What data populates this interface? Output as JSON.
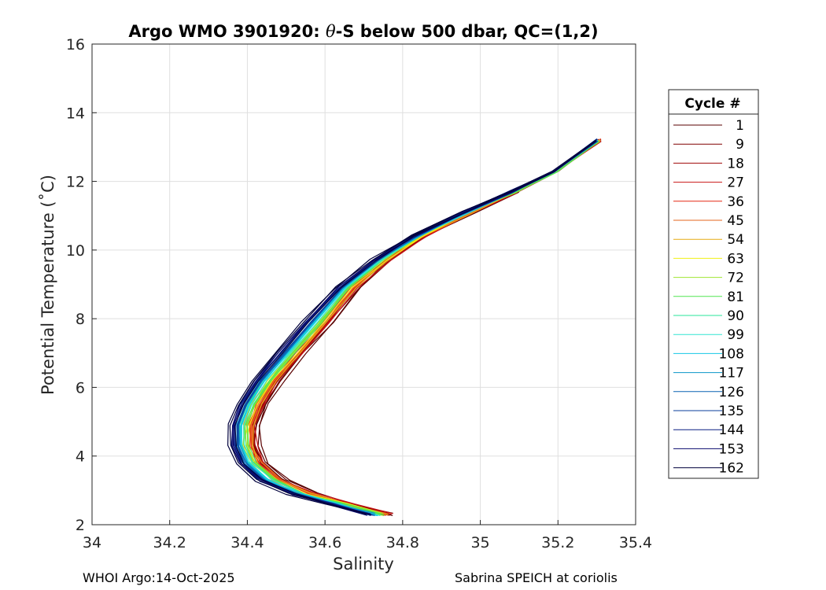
{
  "chart_data": {
    "type": "line",
    "title": "Argo WMO 3901920: θ-S below 500 dbar,  QC=(1,2)",
    "title_prefix": "Argo WMO 3901920: ",
    "title_theta": "θ",
    "title_suffix": "-S below 500 dbar,  QC=(1,2)",
    "xlabel": "Salinity",
    "ylabel": "Potential Temperature (˚C)",
    "xlim": [
      34,
      35.4
    ],
    "ylim": [
      2,
      16
    ],
    "xticks": [
      34,
      34.2,
      34.4,
      34.6,
      34.8,
      35,
      35.2,
      35.4
    ],
    "xtick_labels": [
      "34",
      "34.2",
      "34.4",
      "34.6",
      "34.8",
      "35",
      "35.2",
      "35.4"
    ],
    "yticks": [
      2,
      4,
      6,
      8,
      10,
      12,
      14,
      16
    ],
    "ytick_labels": [
      "2",
      "4",
      "6",
      "8",
      "10",
      "12",
      "14",
      "16"
    ],
    "grid": true,
    "legend": {
      "title": "Cycle #",
      "placement": "right",
      "entries": [
        {
          "label": "1",
          "color": "#5a0000"
        },
        {
          "label": "9",
          "color": "#800000"
        },
        {
          "label": "18",
          "color": "#a00a0a"
        },
        {
          "label": "27",
          "color": "#c81414"
        },
        {
          "label": "36",
          "color": "#e62814"
        },
        {
          "label": "45",
          "color": "#e6641e"
        },
        {
          "label": "54",
          "color": "#e6aa14"
        },
        {
          "label": "63",
          "color": "#f0f014"
        },
        {
          "label": "72",
          "color": "#a0e632"
        },
        {
          "label": "81",
          "color": "#50e650"
        },
        {
          "label": "90",
          "color": "#28e69b"
        },
        {
          "label": "99",
          "color": "#32e6d2"
        },
        {
          "label": "108",
          "color": "#14c8e6"
        },
        {
          "label": "117",
          "color": "#0a96c8"
        },
        {
          "label": "126",
          "color": "#0a64b4"
        },
        {
          "label": "135",
          "color": "#0a3c9b"
        },
        {
          "label": "144",
          "color": "#0a1e82"
        },
        {
          "label": "153",
          "color": "#0a0a6e"
        },
        {
          "label": "162",
          "color": "#00003c"
        }
      ]
    },
    "mean_profile": {
      "s": [
        34.72,
        34.62,
        34.52,
        34.44,
        34.39,
        34.37,
        34.37,
        34.39,
        34.43,
        34.49,
        34.56,
        34.64,
        34.73,
        34.83,
        34.96,
        35.08,
        35.19,
        35.3
      ],
      "t": [
        2.3,
        2.6,
        2.9,
        3.3,
        3.8,
        4.3,
        4.9,
        5.5,
        6.2,
        7.0,
        7.9,
        8.9,
        9.7,
        10.4,
        11.1,
        11.7,
        12.3,
        13.2
      ]
    }
  },
  "footer": {
    "left": "WHOI Argo:14-Oct-2025",
    "right": "Sabrina SPEICH at coriolis"
  }
}
